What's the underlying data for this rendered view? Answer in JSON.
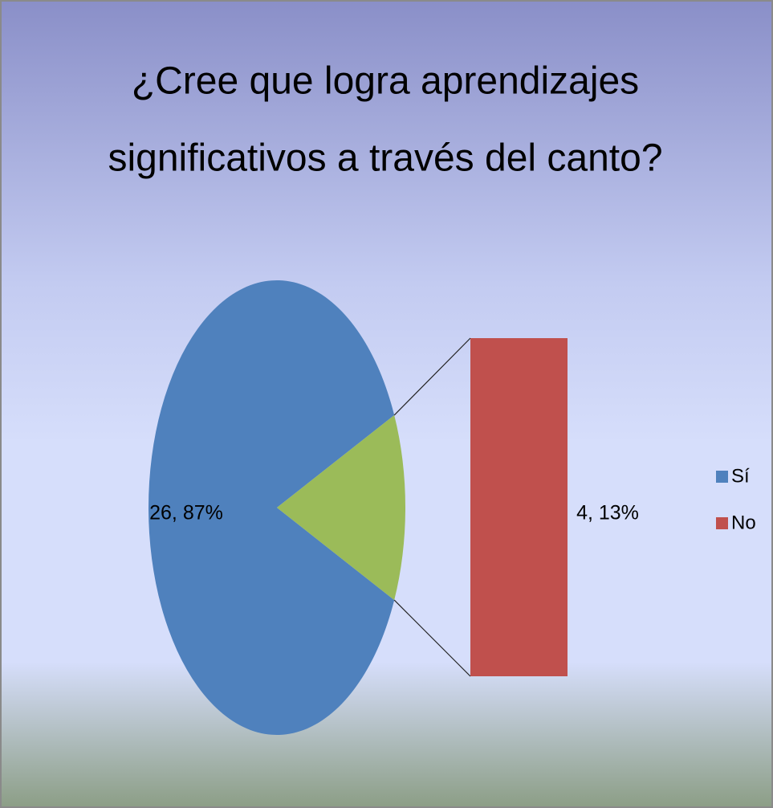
{
  "chart_data": {
    "type": "bar-of-pie",
    "title": [
      "¿Cree que logra aprendizajes",
      "significativos a través del canto?"
    ],
    "categories": [
      "Sí",
      "No"
    ],
    "values": [
      26,
      4
    ],
    "value_labels": [
      "26, 87%",
      "4, 13%"
    ],
    "colors": [
      "#4f81bd",
      "#c0504d"
    ],
    "split_color": "#9bbb59",
    "legend": "right"
  }
}
